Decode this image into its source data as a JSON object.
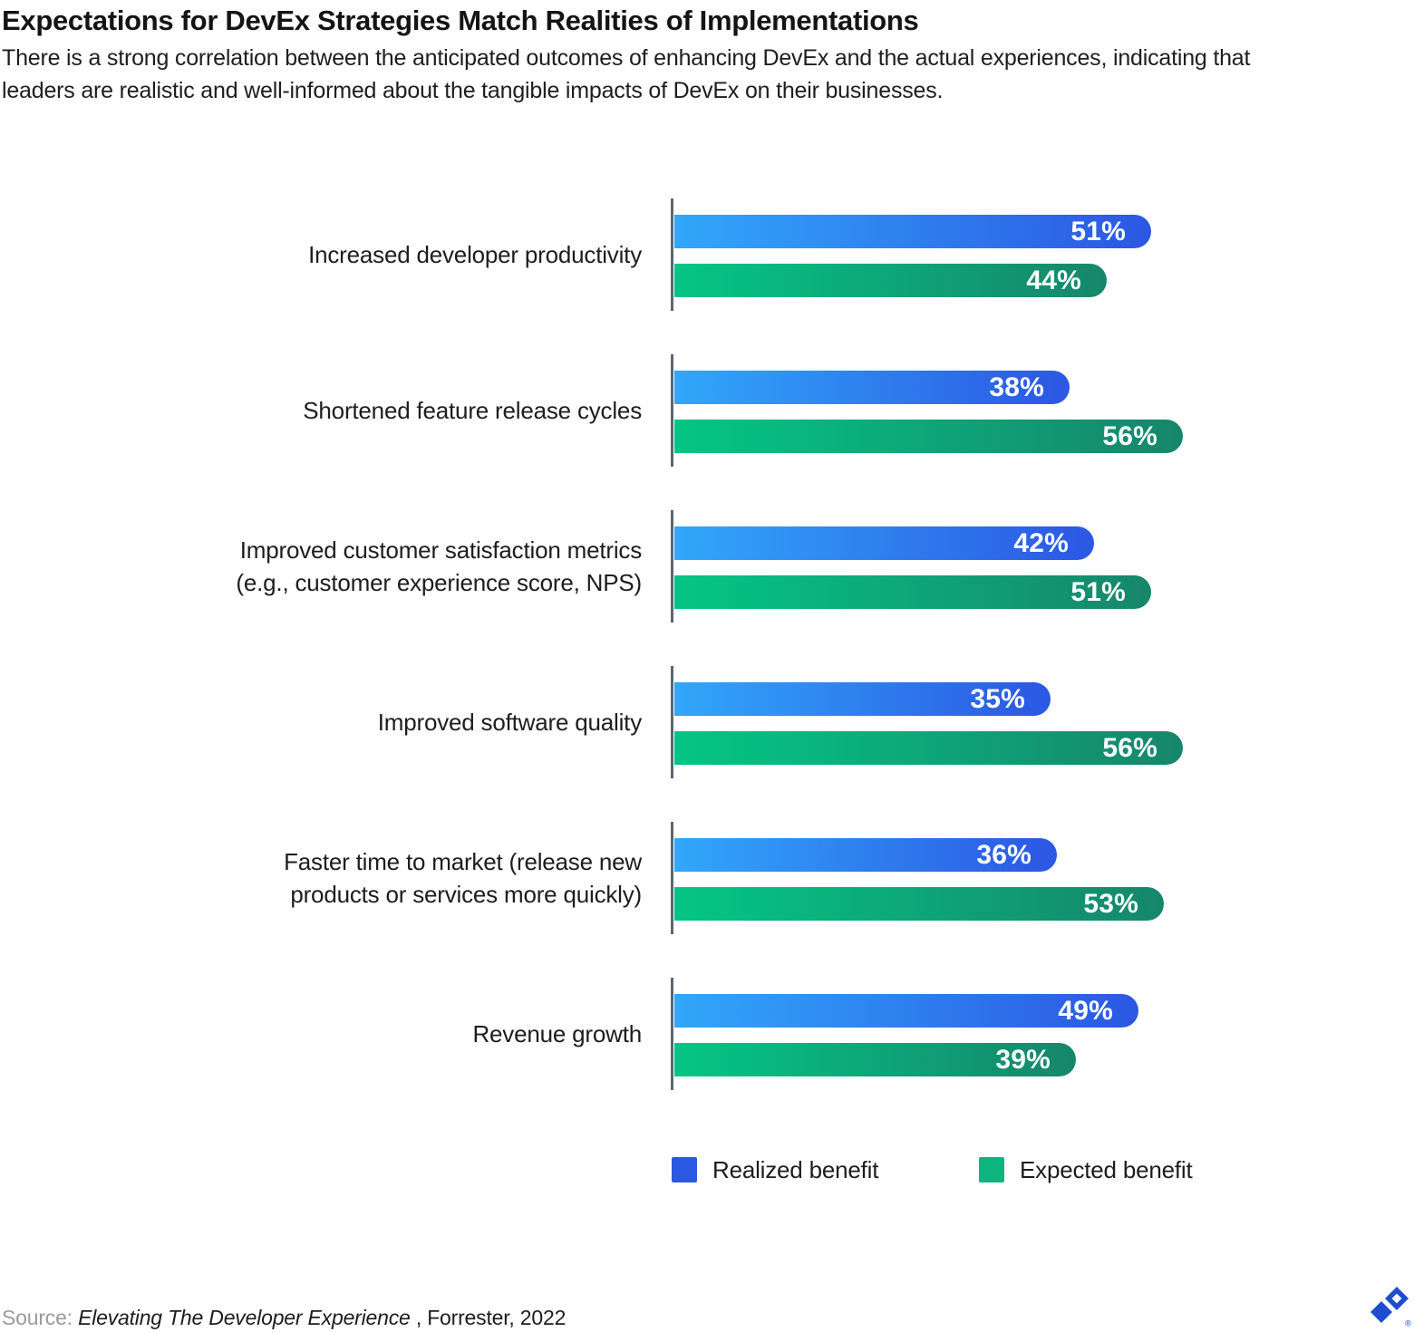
{
  "header": {
    "title": "Expectations for DevEx Strategies Match Realities of Implementations",
    "subtitle": "There is a strong correlation between the anticipated outcomes of enhancing DevEx and the actual experiences, indicating that leaders are realistic and well-informed about the tangible impacts of DevEx on their businesses.",
    "subtitle_lines": [
      "There is a strong correlation between the anticipated outcomes of enhancing DevEx and the actual experiences, indicating that",
      "leaders are realistic and well-informed about the tangible impacts of DevEx on their businesses."
    ]
  },
  "chart_data": {
    "type": "bar",
    "orientation": "horizontal",
    "grid": false,
    "legend_position": "bottom",
    "value_suffix": "%",
    "categories": [
      "Increased developer productivity",
      "Shortened feature release cycles",
      "Improved customer satisfaction metrics (e.g., customer experience score, NPS)",
      "Improved software quality",
      "Faster time to market (release new products or services more quickly)",
      "Revenue growth"
    ],
    "category_lines": [
      [
        "Increased developer productivity"
      ],
      [
        "Shortened feature release cycles"
      ],
      [
        "Improved customer satisfaction metrics",
        "(e.g., customer experience score, NPS)"
      ],
      [
        "Improved software quality"
      ],
      [
        "Faster time to market (release new",
        "products or services more quickly)"
      ],
      [
        "Revenue growth"
      ]
    ],
    "series": [
      {
        "name": "Realized benefit",
        "values": [
          51,
          38,
          42,
          35,
          36,
          49
        ],
        "gradient": [
          "#31a7fa",
          "#2c57e3"
        ]
      },
      {
        "name": "Expected benefit",
        "values": [
          44,
          56,
          51,
          56,
          53,
          39
        ],
        "gradient": [
          "#04c684",
          "#16866b"
        ]
      }
    ]
  },
  "legend": {
    "items": [
      {
        "label": "Realized benefit",
        "color": "#2b58e0"
      },
      {
        "label": "Expected benefit",
        "color": "#0db47e"
      }
    ]
  },
  "footer": {
    "source_label": "Source:",
    "source_title": "Elevating The Developer Experience",
    "source_rest": ", Forrester, 2022"
  },
  "logo": {
    "name": "toptal-logo",
    "color": "#1f4dcf",
    "registered_mark": "®"
  }
}
